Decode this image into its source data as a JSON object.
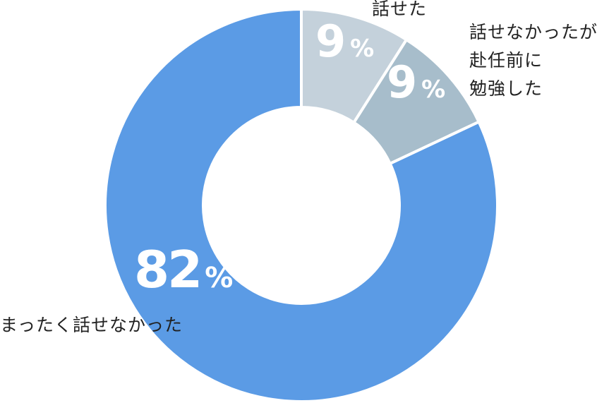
{
  "chart_data": {
    "type": "pie",
    "donut": true,
    "unit": "%",
    "labels": [
      "話せた",
      "話せなかったが赴任前に勉強した",
      "まったく話せなかった"
    ],
    "label_lines": [
      [
        "話せた"
      ],
      [
        "話せなかったが",
        "赴任前に",
        "勉強した"
      ],
      [
        "まったく話せなかった"
      ]
    ],
    "values": [
      9,
      9,
      82
    ],
    "colors": [
      "#c4d1db",
      "#a7bdcb",
      "#5b9be5"
    ],
    "start": "top",
    "direction": "clockwise"
  }
}
